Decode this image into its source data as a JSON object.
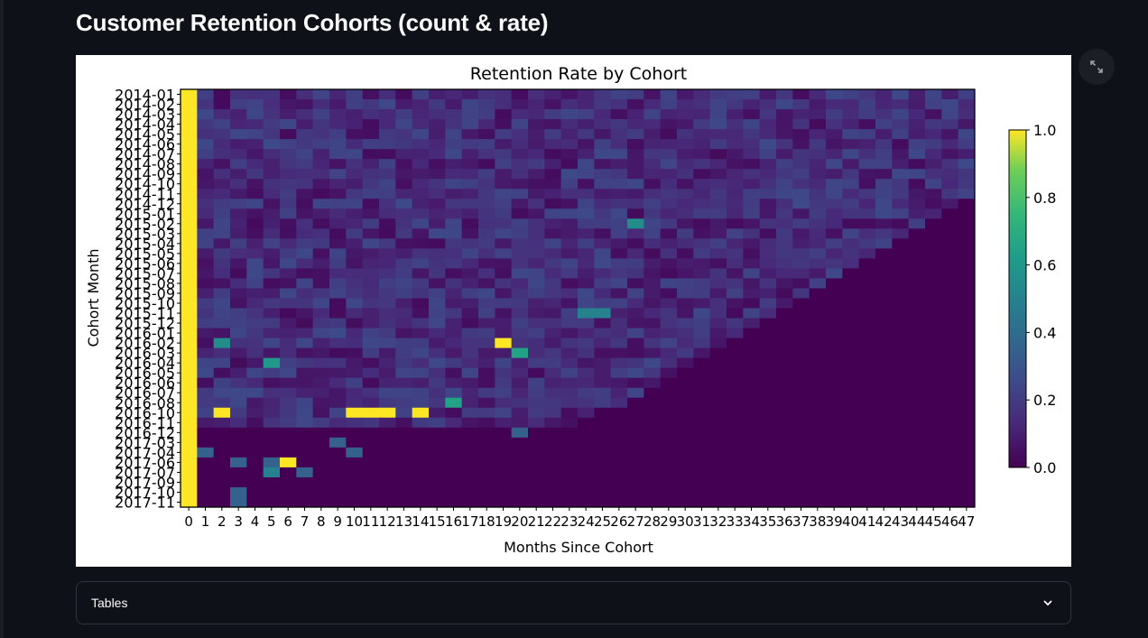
{
  "page": {
    "title": "Customer Retention Cohorts (count & rate)"
  },
  "expander": {
    "label": "Tables"
  },
  "icons": {
    "fullscreen": "fullscreen-expand-icon",
    "expander_toggle": "chevron-down-icon"
  },
  "chart_data": {
    "type": "heatmap",
    "title": "Retention Rate by Cohort",
    "xlabel": "Months Since Cohort",
    "ylabel": "Cohort Month",
    "x": [
      0,
      1,
      2,
      3,
      4,
      5,
      6,
      7,
      8,
      9,
      10,
      11,
      12,
      13,
      14,
      15,
      16,
      17,
      18,
      19,
      20,
      21,
      22,
      23,
      24,
      25,
      26,
      27,
      28,
      29,
      30,
      31,
      32,
      33,
      34,
      35,
      36,
      37,
      38,
      39,
      40,
      41,
      42,
      43,
      44,
      45,
      46,
      47
    ],
    "y": [
      "2014-01",
      "2014-02",
      "2014-03",
      "2014-04",
      "2014-05",
      "2014-06",
      "2014-07",
      "2014-08",
      "2014-09",
      "2014-10",
      "2014-11",
      "2014-12",
      "2015-01",
      "2015-02",
      "2015-03",
      "2015-04",
      "2015-05",
      "2015-06",
      "2015-07",
      "2015-08",
      "2015-09",
      "2015-10",
      "2015-11",
      "2015-12",
      "2016-01",
      "2016-02",
      "2016-03",
      "2016-04",
      "2016-05",
      "2016-06",
      "2016-07",
      "2016-08",
      "2016-10",
      "2016-11",
      "2016-12",
      "2017-03",
      "2017-04",
      "2017-06",
      "2017-07",
      "2017-09",
      "2017-10",
      "2017-11"
    ],
    "colorbar": {
      "colormap": "viridis",
      "range": [
        0.0,
        1.0
      ],
      "ticks": [
        "0.0",
        "0.2",
        "0.4",
        "0.6",
        "0.8",
        "1.0"
      ]
    },
    "highlights": [
      {
        "cohort": "2016-02",
        "month": 19,
        "value": 1.0
      },
      {
        "cohort": "2016-02",
        "month": 2,
        "value": 0.55
      },
      {
        "cohort": "2016-03",
        "month": 20,
        "value": 0.65
      },
      {
        "cohort": "2016-04",
        "month": 5,
        "value": 0.6
      },
      {
        "cohort": "2016-08",
        "month": 16,
        "value": 0.65
      },
      {
        "cohort": "2016-10",
        "month": 2,
        "value": 1.0
      },
      {
        "cohort": "2016-10",
        "month": 10,
        "value": 1.0
      },
      {
        "cohort": "2016-10",
        "month": 11,
        "value": 1.0
      },
      {
        "cohort": "2016-10",
        "month": 12,
        "value": 1.0
      },
      {
        "cohort": "2016-10",
        "month": 14,
        "value": 1.0
      },
      {
        "cohort": "2017-06",
        "month": 6,
        "value": 1.0
      },
      {
        "cohort": "2017-07",
        "month": 5,
        "value": 0.5
      },
      {
        "cohort": "2015-02",
        "month": 27,
        "value": 0.55
      },
      {
        "cohort": "2015-11",
        "month": 24,
        "value": 0.5
      },
      {
        "cohort": "2015-11",
        "month": 25,
        "value": 0.5
      }
    ]
  }
}
